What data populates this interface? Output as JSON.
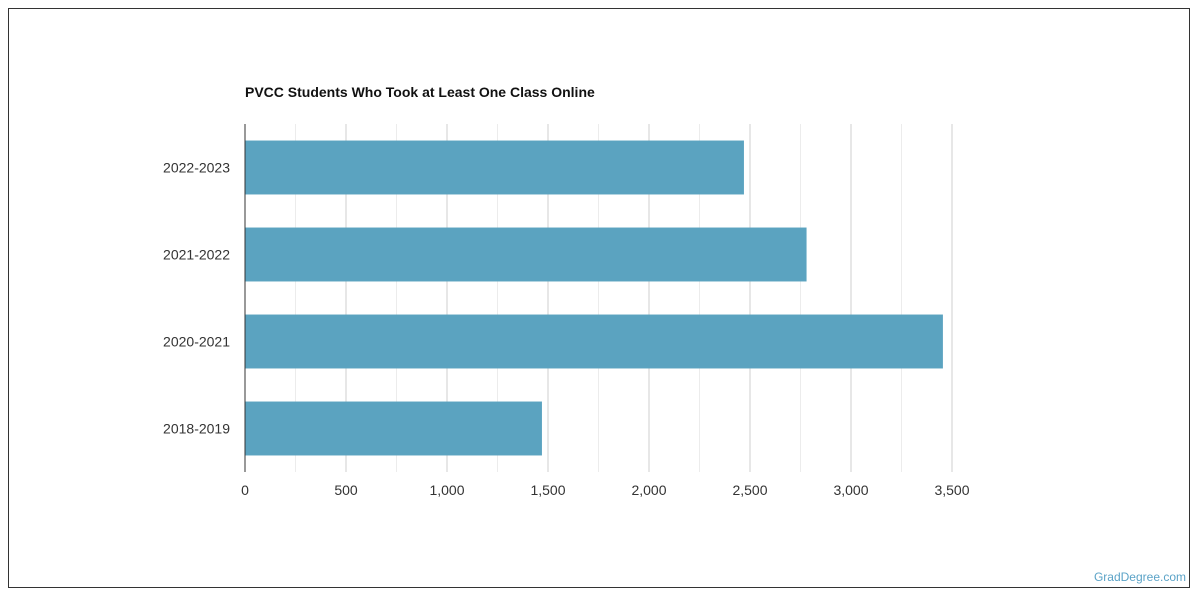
{
  "chart_data": {
    "type": "bar",
    "orientation": "horizontal",
    "title": "PVCC Students Who Took at Least One Class Online",
    "categories": [
      "2022-2023",
      "2021-2022",
      "2020-2021",
      "2018-2019"
    ],
    "values": [
      2470,
      2780,
      3455,
      1470
    ],
    "xlim": [
      0,
      3500
    ],
    "x_ticks": [
      0,
      500,
      1000,
      1500,
      2000,
      2500,
      3000,
      3500
    ],
    "x_tick_labels": [
      "0",
      "500",
      "1,000",
      "1,500",
      "2,000",
      "2,500",
      "3,000",
      "3,500"
    ],
    "bar_color": "#5ba3c0",
    "grid": true
  },
  "footer": {
    "source": "GradDegree.com"
  }
}
